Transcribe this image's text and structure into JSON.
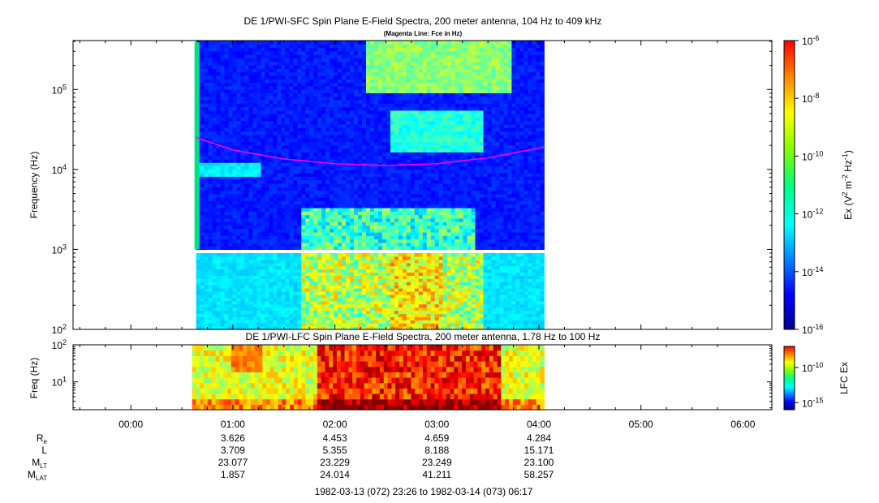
{
  "chart_data": [
    {
      "type": "heatmap",
      "title": "DE 1/PWI-SFC  Spin Plane E-Field Spectra, 200 meter antenna, 104 Hz to 409 kHz",
      "subtitle": "(Magenta Line: Fce in Hz)",
      "ylabel": "Frequency (Hz)",
      "y_scale": "log",
      "ylim": [
        100,
        409000
      ],
      "y_ticks": [
        {
          "value": 100,
          "base": "10",
          "exp": "2"
        },
        {
          "value": 1000,
          "base": "10",
          "exp": "3"
        },
        {
          "value": 10000,
          "base": "10",
          "exp": "4"
        },
        {
          "value": 100000,
          "base": "10",
          "exp": "5"
        }
      ],
      "data_coverage_hours": [
        0.64,
        4.05
      ],
      "colorbar": {
        "label_parts": [
          "Ex (V",
          "2",
          " m",
          "-2",
          " Hz",
          "-1",
          ")"
        ],
        "scale": "log",
        "range": [
          1e-16,
          1e-06
        ],
        "ticks": [
          {
            "value": 1e-06,
            "base": "10",
            "exp": "-6"
          },
          {
            "value": 1e-08,
            "base": "10",
            "exp": "-8"
          },
          {
            "value": 1e-10,
            "base": "10",
            "exp": "-10"
          },
          {
            "value": 1e-12,
            "base": "10",
            "exp": "-12"
          },
          {
            "value": 1e-14,
            "base": "10",
            "exp": "-14"
          },
          {
            "value": 1e-16,
            "base": "10",
            "exp": "-16"
          }
        ]
      },
      "fce_line": {
        "name": "Fce",
        "color": "#ff00ff",
        "x": [
          0.64,
          1.0,
          1.5,
          2.0,
          2.5,
          3.0,
          3.5,
          4.05
        ],
        "y": [
          25000,
          17500,
          13500,
          11800,
          11200,
          11800,
          14000,
          19000
        ]
      }
    },
    {
      "type": "heatmap",
      "title": "DE 1/PWI-LFC  Spin Plane E-Field Spectra, 200 meter antenna, 1.78 Hz to 100 Hz",
      "ylabel": "Freq (Hz)",
      "y_scale": "log",
      "ylim": [
        1.78,
        100
      ],
      "y_ticks": [
        {
          "value": 10,
          "base": "10",
          "exp": "1"
        },
        {
          "value": 100,
          "base": "10",
          "exp": "2"
        }
      ],
      "data_coverage_hours": [
        0.6,
        4.05
      ],
      "colorbar": {
        "label": "LFC Ex",
        "scale": "log",
        "range": [
          1e-16,
          1e-07
        ],
        "ticks": [
          {
            "value": 1e-10,
            "base": "10",
            "exp": "-10"
          },
          {
            "value": 1e-15,
            "base": "10",
            "exp": "-15"
          }
        ]
      }
    }
  ],
  "time_axis": {
    "ticks": [
      {
        "hour": 0,
        "label": "00:00"
      },
      {
        "hour": 1,
        "label": "01:00"
      },
      {
        "hour": 2,
        "label": "02:00"
      },
      {
        "hour": 3,
        "label": "03:00"
      },
      {
        "hour": 4,
        "label": "04:00"
      },
      {
        "hour": 5,
        "label": "05:00"
      },
      {
        "hour": 6,
        "label": "06:00"
      }
    ],
    "range_label": "1982-03-13 (072) 23:26 to 1982-03-14 (073) 06:17"
  },
  "ephemeris": {
    "rows": [
      {
        "name": "R",
        "sub": "e",
        "values": [
          "3.626",
          "4.453",
          "4.659",
          "4.284"
        ]
      },
      {
        "name": "L",
        "sub": "",
        "values": [
          "3.709",
          "5.355",
          "8.188",
          "15.171"
        ]
      },
      {
        "name": "M",
        "sub": "LT",
        "values": [
          "23.077",
          "23.229",
          "23.249",
          "23.100"
        ]
      },
      {
        "name": "M",
        "sub": "LAT",
        "values": [
          "1.857",
          "24.014",
          "41.211",
          "58.257"
        ]
      }
    ]
  }
}
